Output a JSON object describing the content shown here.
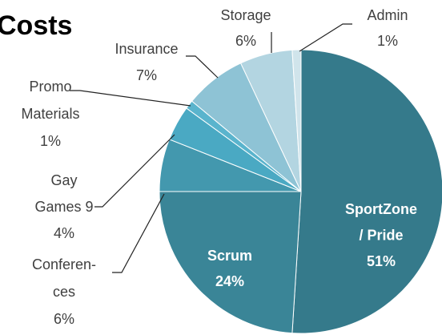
{
  "chart_data": {
    "type": "pie",
    "title": "Costs",
    "categories": [
      [
        "SportZone",
        "/ Pride"
      ],
      [
        "Scrum"
      ],
      [
        "Conferen-",
        "ces"
      ],
      [
        "Gay",
        "Games 9"
      ],
      [
        "Promo",
        "Materials"
      ],
      [
        "Insurance"
      ],
      [
        "Storage"
      ],
      [
        "Admin"
      ]
    ],
    "values": [
      51,
      24,
      6,
      4,
      1,
      7,
      6,
      1
    ],
    "value_labels": [
      "51%",
      "24%",
      "6%",
      "4%",
      "1%",
      "7%",
      "6%",
      "1%"
    ],
    "colors": [
      "#357a8b",
      "#3a8597",
      "#4398ae",
      "#4aa9c3",
      "#5ab4cd",
      "#8ec3d5",
      "#b3d5e1",
      "#d0e4eb"
    ]
  }
}
